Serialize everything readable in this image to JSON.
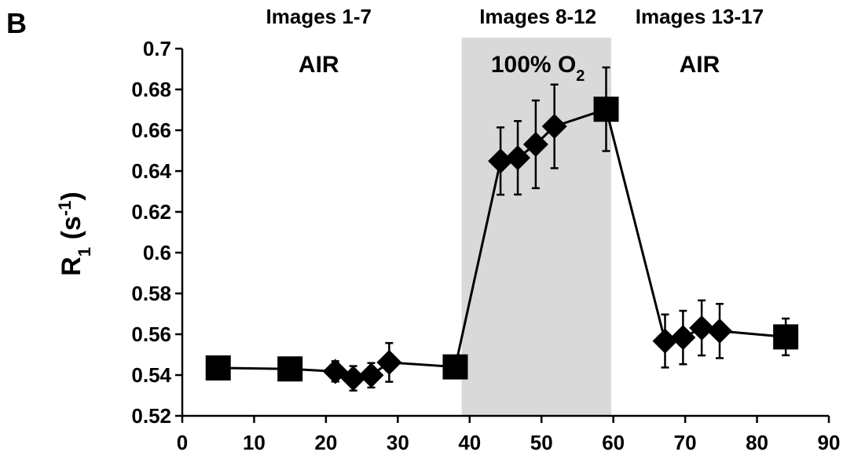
{
  "panel_label": "B",
  "chart_data": {
    "type": "line",
    "ylabel": "R",
    "ylabel_sub": "1",
    "ylabel_unit": "(s",
    "ylabel_sup": "-1",
    "ylabel_close": ")",
    "xlim": [
      0,
      90
    ],
    "ylim": [
      0.52,
      0.7
    ],
    "x_ticks": [
      "0",
      "10",
      "20",
      "30",
      "40",
      "50",
      "60",
      "70",
      "80",
      "90"
    ],
    "y_ticks": [
      "0.52",
      "0.54",
      "0.56",
      "0.58",
      "0.6",
      "0.62",
      "0.64",
      "0.66",
      "0.68",
      "0.7"
    ],
    "shaded_region": {
      "x_start": 38.9,
      "x_end": 59.7,
      "color": "#d9d9d9"
    },
    "phases": [
      {
        "header": "Images 1-7",
        "condition": "AIR",
        "x_center": 19
      },
      {
        "header": "Images 8-12",
        "condition": "100% O",
        "condition_sub": "2",
        "x_center": 49.5
      },
      {
        "header": "Images 13-17",
        "condition": "AIR",
        "x_center": 72
      }
    ],
    "series": [
      {
        "points": [
          {
            "x": 5.0,
            "y": 0.5435,
            "err": 0,
            "marker": "square"
          },
          {
            "x": 15.0,
            "y": 0.543,
            "err": 0,
            "marker": "square"
          },
          {
            "x": 21.3,
            "y": 0.5418,
            "err": 0.005,
            "marker": "diamond"
          },
          {
            "x": 23.8,
            "y": 0.5384,
            "err": 0.006,
            "marker": "diamond"
          },
          {
            "x": 26.3,
            "y": 0.5399,
            "err": 0.006,
            "marker": "diamond"
          },
          {
            "x": 28.8,
            "y": 0.5462,
            "err": 0.0095,
            "marker": "diamond"
          },
          {
            "x": 38.0,
            "y": 0.544,
            "err": 0,
            "marker": "square"
          },
          {
            "x": 44.3,
            "y": 0.6449,
            "err": 0.0165,
            "marker": "diamond"
          },
          {
            "x": 46.7,
            "y": 0.6465,
            "err": 0.018,
            "marker": "diamond"
          },
          {
            "x": 49.2,
            "y": 0.6531,
            "err": 0.0215,
            "marker": "diamond"
          },
          {
            "x": 51.8,
            "y": 0.6619,
            "err": 0.0205,
            "marker": "diamond"
          },
          {
            "x": 59.0,
            "y": 0.6703,
            "err": 0.0205,
            "marker": "square"
          },
          {
            "x": 67.2,
            "y": 0.5567,
            "err": 0.013,
            "marker": "diamond"
          },
          {
            "x": 69.7,
            "y": 0.5584,
            "err": 0.0131,
            "marker": "diamond"
          },
          {
            "x": 72.3,
            "y": 0.5631,
            "err": 0.0135,
            "marker": "diamond"
          },
          {
            "x": 74.8,
            "y": 0.5616,
            "err": 0.0133,
            "marker": "diamond"
          },
          {
            "x": 84.0,
            "y": 0.5587,
            "err": 0.009,
            "marker": "square"
          }
        ]
      }
    ]
  }
}
